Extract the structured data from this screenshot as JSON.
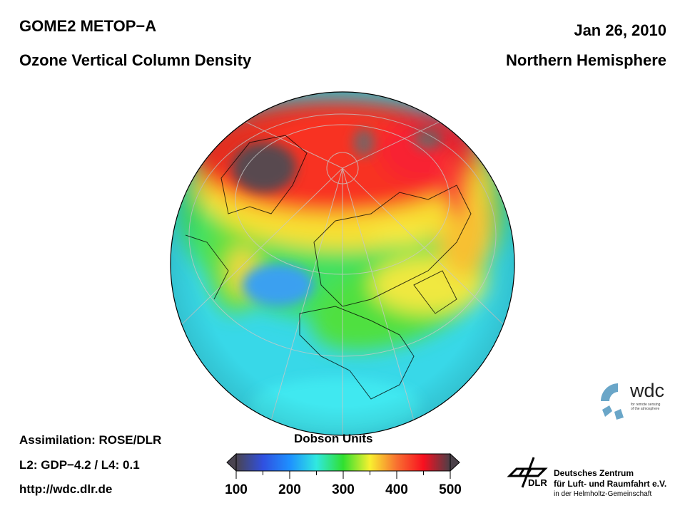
{
  "header": {
    "instrument": "GOME2 METOP−A",
    "product": "Ozone Vertical Column Density",
    "date": "Jan 26, 2010",
    "region": "Northern Hemisphere"
  },
  "footer": {
    "assimilation": "Assimilation: ROSE/DLR",
    "version": "L2: GDP−4.2 / L4: 0.1",
    "url": "http://wdc.dlr.de"
  },
  "colorbar": {
    "title": "Dobson Units",
    "min": 100,
    "max": 500,
    "ticks": [
      "100",
      "200",
      "300",
      "400",
      "500"
    ],
    "colors": [
      "#4a4450",
      "#3050e0",
      "#1e90ff",
      "#30e8e0",
      "#30e030",
      "#f8f030",
      "#f87030",
      "#f81020",
      "#4a4048"
    ]
  },
  "logos": {
    "wdc": {
      "name": "wdc",
      "subtitle1": "for remote sensing",
      "subtitle2": "of the atmosphere",
      "color": "#6aa6c8"
    },
    "dlr": {
      "abbr": "DLR",
      "line1": "Deutsches Zentrum",
      "line2": "für Luft- und Raumfahrt e.V.",
      "line3": "in der Helmholtz-Gemeinschaft"
    }
  }
}
